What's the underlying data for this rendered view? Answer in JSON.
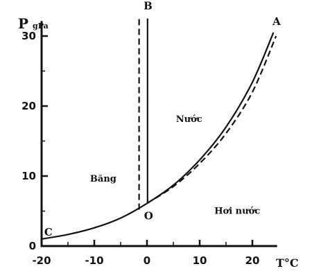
{
  "chart_data": {
    "type": "line",
    "title": "",
    "xlabel": "T°C",
    "ylabel_main": "P",
    "ylabel_unit": "gPa",
    "xlim": [
      -20,
      24.5
    ],
    "ylim": [
      0,
      32
    ],
    "x_ticks": [
      {
        "value": -20,
        "label": "-20"
      },
      {
        "value": -10,
        "label": "-10"
      },
      {
        "value": 0,
        "label": "0"
      },
      {
        "value": 10,
        "label": "10"
      },
      {
        "value": 20,
        "label": "20"
      }
    ],
    "y_ticks": [
      {
        "value": 0,
        "label": "0"
      },
      {
        "value": 10,
        "label": "10"
      },
      {
        "value": 20,
        "label": "20"
      },
      {
        "value": 30,
        "label": "30"
      }
    ],
    "series": [
      {
        "style": "solid",
        "x": [
          -20,
          -15,
          -10,
          -5,
          0,
          5,
          10,
          15,
          20,
          24
        ],
        "y": [
          1.0,
          1.65,
          2.6,
          4.0,
          6.1,
          8.7,
          12.3,
          17.0,
          23.4,
          30.5
        ]
      },
      {
        "style": "dashed",
        "x": [
          0,
          5,
          10,
          15,
          20,
          24.5
        ],
        "y": [
          6.1,
          8.5,
          11.8,
          16.1,
          22.0,
          30.0
        ]
      },
      {
        "style": "solid",
        "x": [
          0.1,
          0.1
        ],
        "y": [
          6.1,
          32.5
        ]
      },
      {
        "style": "dashed",
        "x": [
          -1.5,
          -1.5
        ],
        "y": [
          5.2,
          32.5
        ]
      }
    ],
    "point_labels": [
      {
        "text": "A",
        "x": 24.6,
        "y": 31.6
      },
      {
        "text": "B",
        "x": 0.2,
        "y": 33.8
      },
      {
        "text": "C",
        "x": -18.7,
        "y": 1.5
      },
      {
        "text": "O",
        "x": 0.3,
        "y": 3.8
      }
    ],
    "regions": [
      {
        "text": "Băng",
        "x": -10.8,
        "y": 9.2
      },
      {
        "text": "Nước",
        "x": 5.5,
        "y": 17.7
      },
      {
        "text": "Hơi nước",
        "x": 12.8,
        "y": 4.6
      }
    ]
  }
}
